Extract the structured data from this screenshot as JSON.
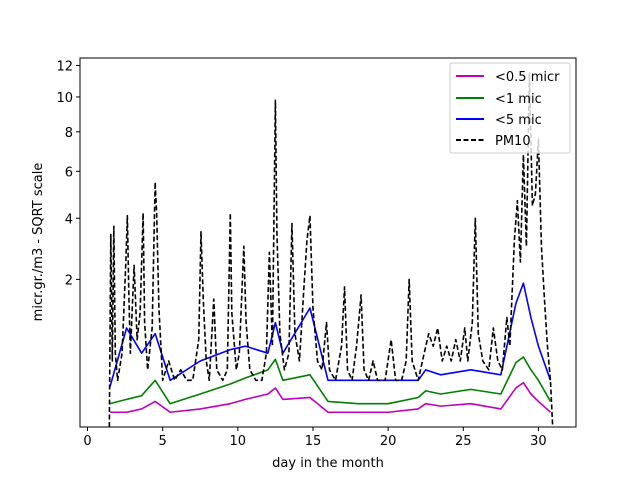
{
  "chart_data": {
    "type": "line",
    "title": "",
    "xlabel": "day in the month",
    "ylabel": "micr.gr./m3 - SQRT scale",
    "x_scale": "linear",
    "y_scale": "sqrt",
    "xlim": [
      -0.5,
      32.5
    ],
    "ylim": [
      0,
      12.5
    ],
    "x_ticks": [
      0,
      5,
      10,
      15,
      20,
      25,
      30
    ],
    "y_ticks": [
      2,
      4,
      6,
      8,
      10,
      12
    ],
    "grid": false,
    "legend_position": "upper right",
    "series": [
      {
        "name": "<0.5 micr",
        "color": "#bf00bf",
        "style": "solid",
        "points": [
          [
            1.5,
            0.02
          ],
          [
            2.6,
            0.02
          ],
          [
            3.6,
            0.03
          ],
          [
            4.5,
            0.06
          ],
          [
            5.5,
            0.02
          ],
          [
            7.5,
            0.03
          ],
          [
            9.5,
            0.05
          ],
          [
            10.5,
            0.07
          ],
          [
            12,
            0.1
          ],
          [
            12.5,
            0.14
          ],
          [
            13,
            0.07
          ],
          [
            14.8,
            0.08
          ],
          [
            16,
            0.02
          ],
          [
            18,
            0.02
          ],
          [
            20,
            0.02
          ],
          [
            22,
            0.03
          ],
          [
            22.5,
            0.05
          ],
          [
            23.5,
            0.04
          ],
          [
            25.5,
            0.05
          ],
          [
            27.5,
            0.03
          ],
          [
            28.5,
            0.14
          ],
          [
            29,
            0.18
          ],
          [
            29.5,
            0.1
          ],
          [
            30,
            0.06
          ],
          [
            30.8,
            0.02
          ]
        ]
      },
      {
        "name": "<1 mic",
        "color": "#008000",
        "style": "solid",
        "points": [
          [
            1.5,
            0.05
          ],
          [
            2.6,
            0.07
          ],
          [
            3.6,
            0.09
          ],
          [
            4.5,
            0.2
          ],
          [
            5.5,
            0.05
          ],
          [
            7.5,
            0.1
          ],
          [
            9.5,
            0.17
          ],
          [
            10.5,
            0.22
          ],
          [
            12,
            0.3
          ],
          [
            12.5,
            0.42
          ],
          [
            13,
            0.2
          ],
          [
            14.8,
            0.25
          ],
          [
            16,
            0.06
          ],
          [
            18,
            0.05
          ],
          [
            20,
            0.05
          ],
          [
            22,
            0.08
          ],
          [
            22.5,
            0.12
          ],
          [
            23.5,
            0.1
          ],
          [
            25.5,
            0.13
          ],
          [
            27.5,
            0.1
          ],
          [
            28.5,
            0.38
          ],
          [
            29,
            0.45
          ],
          [
            29.5,
            0.3
          ],
          [
            30,
            0.2
          ],
          [
            30.8,
            0.06
          ]
        ]
      },
      {
        "name": "<5 mic",
        "color": "#0000ff",
        "style": "solid",
        "points": [
          [
            1.5,
            0.15
          ],
          [
            2.6,
            0.9
          ],
          [
            3.6,
            0.5
          ],
          [
            4.5,
            0.8
          ],
          [
            5.5,
            0.2
          ],
          [
            7.5,
            0.4
          ],
          [
            9.5,
            0.55
          ],
          [
            10.5,
            0.6
          ],
          [
            12,
            0.5
          ],
          [
            12.5,
            1.0
          ],
          [
            13,
            0.5
          ],
          [
            14.8,
            1.3
          ],
          [
            16,
            0.2
          ],
          [
            18,
            0.2
          ],
          [
            20,
            0.2
          ],
          [
            22,
            0.2
          ],
          [
            22.5,
            0.3
          ],
          [
            23.5,
            0.25
          ],
          [
            25.5,
            0.3
          ],
          [
            27.5,
            0.25
          ],
          [
            28.5,
            1.4
          ],
          [
            29,
            1.9
          ],
          [
            29.5,
            1.1
          ],
          [
            30,
            0.6
          ],
          [
            30.8,
            0.2
          ]
        ]
      },
      {
        "name": "PM10",
        "color": "#000000",
        "style": "dashed",
        "points": [
          [
            1.45,
            0.0
          ],
          [
            1.55,
            3.4
          ],
          [
            1.65,
            0.4
          ],
          [
            1.75,
            3.7
          ],
          [
            1.85,
            0.5
          ],
          [
            2.0,
            0.2
          ],
          [
            2.3,
            0.5
          ],
          [
            2.55,
            2.5
          ],
          [
            2.65,
            4.1
          ],
          [
            2.75,
            1.6
          ],
          [
            2.85,
            0.5
          ],
          [
            3.1,
            2.4
          ],
          [
            3.3,
            0.7
          ],
          [
            3.5,
            1.2
          ],
          [
            3.7,
            4.2
          ],
          [
            3.8,
            1.0
          ],
          [
            4.0,
            0.3
          ],
          [
            4.3,
            0.9
          ],
          [
            4.5,
            5.5
          ],
          [
            4.6,
            4.2
          ],
          [
            4.75,
            1.3
          ],
          [
            5.0,
            0.2
          ],
          [
            5.4,
            0.4
          ],
          [
            5.8,
            0.2
          ],
          [
            6.2,
            0.3
          ],
          [
            6.6,
            0.2
          ],
          [
            7.0,
            0.2
          ],
          [
            7.4,
            0.7
          ],
          [
            7.55,
            3.5
          ],
          [
            7.7,
            1.5
          ],
          [
            7.9,
            0.4
          ],
          [
            8.1,
            0.2
          ],
          [
            8.4,
            1.5
          ],
          [
            8.6,
            0.3
          ],
          [
            9.0,
            0.2
          ],
          [
            9.3,
            0.3
          ],
          [
            9.5,
            4.2
          ],
          [
            9.6,
            1.2
          ],
          [
            9.9,
            0.3
          ],
          [
            10.1,
            0.5
          ],
          [
            10.4,
            3.0
          ],
          [
            10.55,
            1.0
          ],
          [
            10.8,
            0.3
          ],
          [
            11.2,
            0.2
          ],
          [
            11.6,
            0.2
          ],
          [
            11.9,
            0.5
          ],
          [
            12.1,
            2.8
          ],
          [
            12.3,
            0.6
          ],
          [
            12.5,
            9.8
          ],
          [
            12.6,
            3.5
          ],
          [
            12.8,
            0.8
          ],
          [
            13.1,
            0.3
          ],
          [
            13.4,
            0.5
          ],
          [
            13.6,
            3.8
          ],
          [
            13.8,
            0.8
          ],
          [
            14.1,
            0.4
          ],
          [
            14.4,
            1.8
          ],
          [
            14.6,
            3.2
          ],
          [
            14.8,
            4.1
          ],
          [
            15.0,
            1.3
          ],
          [
            15.3,
            0.4
          ],
          [
            15.6,
            0.3
          ],
          [
            15.9,
            1.0
          ],
          [
            16.1,
            0.3
          ],
          [
            16.5,
            0.2
          ],
          [
            16.9,
            0.6
          ],
          [
            17.1,
            1.8
          ],
          [
            17.3,
            0.3
          ],
          [
            17.6,
            0.2
          ],
          [
            17.9,
            0.6
          ],
          [
            18.2,
            1.6
          ],
          [
            18.4,
            0.3
          ],
          [
            18.7,
            0.2
          ],
          [
            19.0,
            0.4
          ],
          [
            19.3,
            0.2
          ],
          [
            19.8,
            0.2
          ],
          [
            20.2,
            0.7
          ],
          [
            20.5,
            0.2
          ],
          [
            20.9,
            0.2
          ],
          [
            21.2,
            0.4
          ],
          [
            21.4,
            2.0
          ],
          [
            21.6,
            0.4
          ],
          [
            22.0,
            0.2
          ],
          [
            22.4,
            0.5
          ],
          [
            22.7,
            0.8
          ],
          [
            23.0,
            0.6
          ],
          [
            23.3,
            0.9
          ],
          [
            23.6,
            0.4
          ],
          [
            23.9,
            0.6
          ],
          [
            24.2,
            0.4
          ],
          [
            24.5,
            0.7
          ],
          [
            24.8,
            0.4
          ],
          [
            25.1,
            0.9
          ],
          [
            25.3,
            0.4
          ],
          [
            25.6,
            1.0
          ],
          [
            25.8,
            4.0
          ],
          [
            26.0,
            0.8
          ],
          [
            26.3,
            0.4
          ],
          [
            26.7,
            0.3
          ],
          [
            27.0,
            0.9
          ],
          [
            27.3,
            0.4
          ],
          [
            27.6,
            0.3
          ],
          [
            27.9,
            1.1
          ],
          [
            28.1,
            0.6
          ],
          [
            28.4,
            3.2
          ],
          [
            28.6,
            4.7
          ],
          [
            28.8,
            2.5
          ],
          [
            29.0,
            6.8
          ],
          [
            29.2,
            3.0
          ],
          [
            29.4,
            11.5
          ],
          [
            29.6,
            4.5
          ],
          [
            29.8,
            5.0
          ],
          [
            30.0,
            7.6
          ],
          [
            30.2,
            3.0
          ],
          [
            30.4,
            1.5
          ],
          [
            30.6,
            0.6
          ],
          [
            30.8,
            0.2
          ],
          [
            30.95,
            0.0
          ]
        ]
      }
    ]
  }
}
